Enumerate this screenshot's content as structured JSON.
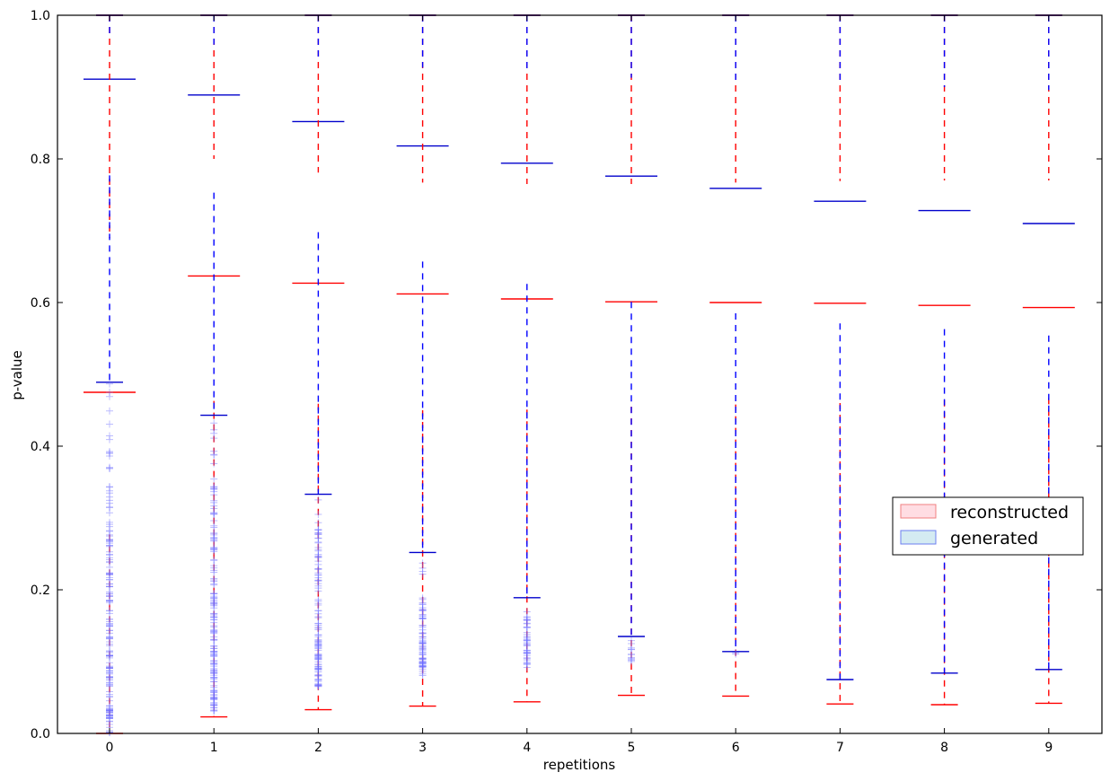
{
  "chart_data": {
    "type": "boxplot",
    "xlabel": "repetitions",
    "ylabel": "p-value",
    "ylim": [
      0.0,
      1.0
    ],
    "yticks": [
      0.0,
      0.2,
      0.4,
      0.6,
      0.8,
      1.0
    ],
    "ytick_labels": [
      "0.0",
      "0.2",
      "0.4",
      "0.6",
      "0.8",
      "1.0"
    ],
    "categories": [
      "0",
      "1",
      "2",
      "3",
      "4",
      "5",
      "6",
      "7",
      "8",
      "9"
    ],
    "legend_position": "right",
    "series": [
      {
        "name": "reconstructed",
        "fill": "#ffdde3",
        "edge": "#f08080",
        "median_color": "#ff0000",
        "whisker_color": "#ff0000",
        "q1": [
          0.277,
          0.463,
          0.459,
          0.45,
          0.451,
          0.455,
          0.458,
          0.46,
          0.464,
          0.467
        ],
        "median": [
          0.475,
          0.637,
          0.627,
          0.612,
          0.605,
          0.601,
          0.6,
          0.599,
          0.596,
          0.593
        ],
        "q3": [
          0.69,
          0.8,
          0.781,
          0.767,
          0.765,
          0.765,
          0.767,
          0.769,
          0.77,
          0.77
        ],
        "whislo": [
          0.0,
          0.023,
          0.033,
          0.038,
          0.044,
          0.053,
          0.052,
          0.041,
          0.04,
          0.042
        ],
        "whishi": [
          1.0,
          1.0,
          1.0,
          1.0,
          1.0,
          1.0,
          1.0,
          1.0,
          1.0,
          1.0
        ]
      },
      {
        "name": "generated",
        "fill": "#d4ebf2",
        "edge": "#6d7ff0",
        "median_color": "#0000cc",
        "whisker_color": "#0000ff",
        "q1": [
          0.777,
          0.753,
          0.698,
          0.657,
          0.626,
          0.601,
          0.585,
          0.571,
          0.563,
          0.554
        ],
        "median": [
          0.911,
          0.889,
          0.852,
          0.818,
          0.794,
          0.776,
          0.759,
          0.741,
          0.728,
          0.71
        ],
        "q3": [
          0.97,
          0.959,
          0.94,
          0.927,
          0.919,
          0.913,
          0.909,
          0.905,
          0.9,
          0.896
        ],
        "whislo": [
          0.489,
          0.443,
          0.333,
          0.252,
          0.189,
          0.135,
          0.114,
          0.075,
          0.084,
          0.089
        ],
        "whishi": [
          1.0,
          1.0,
          1.0,
          1.0,
          1.0,
          1.0,
          1.0,
          1.0,
          1.0,
          1.0
        ],
        "outlier_ranges": [
          [
            0.0,
            0.489
          ],
          [
            0.03,
            0.443
          ],
          [
            0.06,
            0.333
          ],
          [
            0.08,
            0.252
          ],
          [
            0.09,
            0.189
          ],
          [
            0.1,
            0.135
          ],
          [
            0.11,
            0.114
          ],
          [
            0.07,
            0.075
          ],
          [
            0.08,
            0.084
          ],
          [
            0.085,
            0.089
          ]
        ],
        "outlier_counts": [
          170,
          150,
          110,
          75,
          40,
          12,
          2,
          0,
          0,
          0
        ]
      }
    ]
  }
}
